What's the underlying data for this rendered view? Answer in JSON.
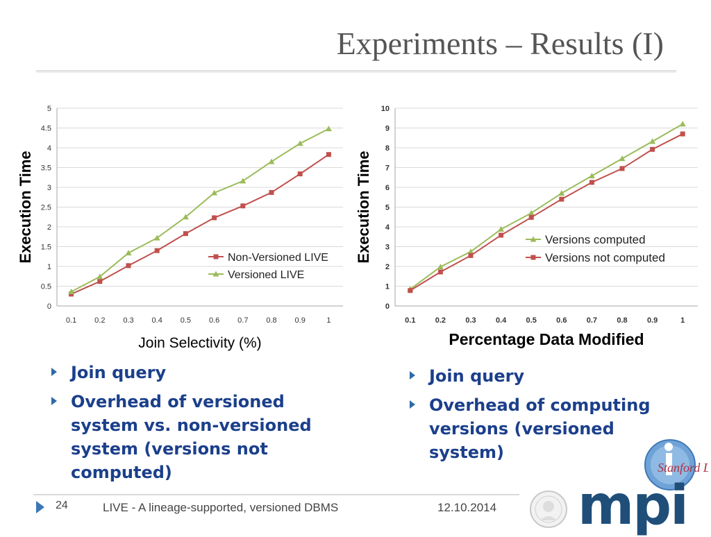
{
  "slide": {
    "title": "Experiments – Results (I)",
    "footer_number": "24",
    "footer_text": "LIVE - A lineage-supported, versioned DBMS",
    "footer_date": "12.10.2014",
    "logo_text": "Stanford Lab",
    "logo_letters": "mpi"
  },
  "bullets_left": [
    "Join query",
    "Overhead of versioned system vs. non-versioned system (versions not computed)"
  ],
  "bullets_right": [
    "Join query",
    "Overhead of computing versions (versioned system)"
  ],
  "colors": {
    "red": "#c0504d",
    "green": "#9bbb59",
    "grid": "#d9d9d9",
    "bullet_text": "#1b3f8b",
    "mpi_blue": "#1f4e79"
  },
  "chart_data": [
    {
      "type": "line",
      "title": "",
      "xlabel": "Join Selectivity (%)",
      "ylabel": "Execution Time",
      "categories": [
        "0.1",
        "0.2",
        "0.3",
        "0.4",
        "0.5",
        "0.6",
        "0.7",
        "0.8",
        "0.9",
        "1"
      ],
      "ylim": [
        0,
        5
      ],
      "yticks": [
        "0",
        "0.5",
        "1",
        "1.5",
        "2",
        "2.5",
        "3",
        "3.5",
        "4",
        "4.5",
        "5"
      ],
      "grid": true,
      "legend": "right",
      "series": [
        {
          "name": "Non-Versioned LIVE",
          "color": "#c0504d",
          "marker": "square",
          "values": [
            0.3,
            0.62,
            1.02,
            1.4,
            1.83,
            2.23,
            2.53,
            2.87,
            3.34,
            3.83
          ]
        },
        {
          "name": "Versioned LIVE",
          "color": "#9bbb59",
          "marker": "triangle",
          "values": [
            0.36,
            0.74,
            1.34,
            1.72,
            2.25,
            2.86,
            3.16,
            3.65,
            4.11,
            4.48
          ]
        }
      ]
    },
    {
      "type": "line",
      "title": "",
      "xlabel": "Percentage Data Modified",
      "ylabel": "Execution Time",
      "categories": [
        "0.1",
        "0.2",
        "0.3",
        "0.4",
        "0.5",
        "0.6",
        "0.7",
        "0.8",
        "0.9",
        "1"
      ],
      "ylim": [
        0,
        10
      ],
      "yticks": [
        "0",
        "1",
        "2",
        "3",
        "4",
        "5",
        "6",
        "7",
        "8",
        "9",
        "10"
      ],
      "grid": true,
      "legend": "right",
      "series": [
        {
          "name": "Versions computed",
          "color": "#9bbb59",
          "marker": "triangle",
          "values": [
            0.85,
            1.98,
            2.75,
            3.88,
            4.7,
            5.7,
            6.58,
            7.45,
            8.32,
            9.2
          ]
        },
        {
          "name": "Versions not computed",
          "color": "#c0504d",
          "marker": "square",
          "values": [
            0.78,
            1.72,
            2.55,
            3.58,
            4.48,
            5.4,
            6.25,
            6.95,
            7.92,
            8.7
          ]
        }
      ]
    }
  ]
}
